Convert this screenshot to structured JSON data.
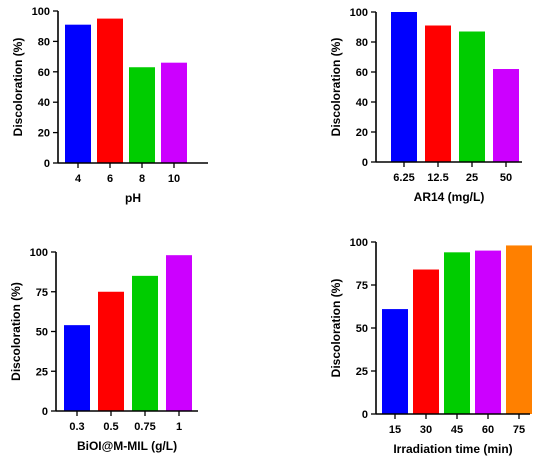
{
  "chart_data": [
    {
      "type": "bar",
      "xlabel": "pH",
      "ylabel": "Discoloration (%)",
      "categories": [
        "4",
        "6",
        "8",
        "10"
      ],
      "values": [
        91,
        95,
        63,
        66
      ],
      "colors": [
        "#0000ff",
        "#ff0000",
        "#00cc00",
        "#cc00ff"
      ],
      "ylim": [
        0,
        100
      ],
      "yticks": [
        0,
        20,
        40,
        60,
        80,
        100
      ],
      "grid": false
    },
    {
      "type": "bar",
      "xlabel": "AR14 (mg/L)",
      "ylabel": "Discoloration (%)",
      "categories": [
        "6.25",
        "12.5",
        "25",
        "50"
      ],
      "values": [
        100,
        91,
        87,
        62
      ],
      "colors": [
        "#0000ff",
        "#ff0000",
        "#00cc00",
        "#cc00ff"
      ],
      "ylim": [
        0,
        100
      ],
      "yticks": [
        0,
        20,
        40,
        60,
        80,
        100
      ],
      "grid": false
    },
    {
      "type": "bar",
      "xlabel": "BiOI@M-MIL (g/L)",
      "ylabel": "Discoloration (%)",
      "categories": [
        "0.3",
        "0.5",
        "0.75",
        "1"
      ],
      "values": [
        54,
        75,
        85,
        98
      ],
      "colors": [
        "#0000ff",
        "#ff0000",
        "#00cc00",
        "#cc00ff"
      ],
      "ylim": [
        0,
        100
      ],
      "yticks": [
        0,
        25,
        50,
        75,
        100
      ],
      "grid": false
    },
    {
      "type": "bar",
      "xlabel": "Irradiation time (min)",
      "ylabel": "Discoloration (%)",
      "categories": [
        "15",
        "30",
        "45",
        "60",
        "75"
      ],
      "values": [
        61,
        84,
        94,
        95,
        98
      ],
      "colors": [
        "#0000ff",
        "#ff0000",
        "#00cc00",
        "#cc00ff",
        "#ff8000"
      ],
      "ylim": [
        0,
        100
      ],
      "yticks": [
        0,
        25,
        50,
        75,
        100
      ],
      "grid": false
    }
  ]
}
